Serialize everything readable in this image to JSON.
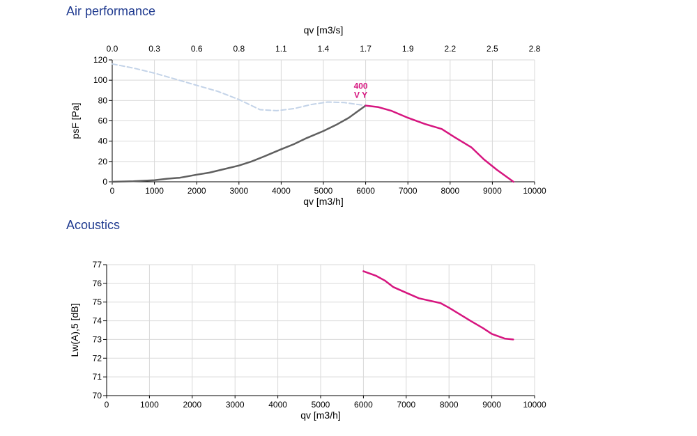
{
  "sections": {
    "air_title": "Air performance",
    "acoustics_title": "Acoustics"
  },
  "colors": {
    "operating_curve": "#d6157f",
    "reference_curve": "#5f5f5f",
    "max_curve": "#c3d3e8",
    "grid": "#d9d9d9",
    "title": "#1f3a8f"
  },
  "chart_data": [
    {
      "type": "line",
      "title": "Air performance",
      "xlabel": "qv [m3/h]",
      "x2label": "qv [m3/s]",
      "ylabel": "psF [Pa]",
      "xlim": [
        0,
        10000
      ],
      "ylim": [
        0,
        120
      ],
      "x_ticks": [
        "0",
        "1000",
        "2000",
        "3000",
        "4000",
        "5000",
        "6000",
        "7000",
        "8000",
        "9000",
        "10000"
      ],
      "x2_ticks": [
        "0.0",
        "0.3",
        "0.6",
        "0.8",
        "1.1",
        "1.4",
        "1.7",
        "1.9",
        "2.2",
        "2.5",
        "2.8"
      ],
      "y_ticks": [
        "0",
        "20",
        "40",
        "60",
        "80",
        "100",
        "120"
      ],
      "grid": true,
      "annotation": {
        "lines": [
          "400",
          "V Y"
        ],
        "x": 6000,
        "y": 75
      },
      "series": [
        {
          "style": "dashed",
          "color": "#c3d3e8",
          "points": [
            [
              0,
              116
            ],
            [
              500,
              112
            ],
            [
              1000,
              107
            ],
            [
              1500,
              101
            ],
            [
              2000,
              95
            ],
            [
              2500,
              89
            ],
            [
              3000,
              81
            ],
            [
              3500,
              71
            ],
            [
              3900,
              70
            ],
            [
              4300,
              72
            ],
            [
              4700,
              76
            ],
            [
              5100,
              78.5
            ],
            [
              5500,
              78
            ],
            [
              6000,
              75
            ]
          ]
        },
        {
          "style": "solid",
          "color": "#5f5f5f",
          "points": [
            [
              0,
              0
            ],
            [
              500,
              0.5
            ],
            [
              1000,
              1.5
            ],
            [
              1300,
              3
            ],
            [
              1600,
              4
            ],
            [
              2000,
              7
            ],
            [
              2300,
              9
            ],
            [
              2600,
              12
            ],
            [
              3000,
              16
            ],
            [
              3300,
              20
            ],
            [
              3600,
              25
            ],
            [
              4000,
              32
            ],
            [
              4300,
              37
            ],
            [
              4600,
              43
            ],
            [
              5000,
              50
            ],
            [
              5300,
              56
            ],
            [
              5600,
              63
            ],
            [
              6000,
              75
            ]
          ]
        },
        {
          "style": "solid",
          "color": "#d6157f",
          "points": [
            [
              6000,
              75
            ],
            [
              6300,
              73.5
            ],
            [
              6600,
              70
            ],
            [
              7000,
              63
            ],
            [
              7400,
              57
            ],
            [
              7800,
              52
            ],
            [
              8100,
              44
            ],
            [
              8500,
              34
            ],
            [
              8800,
              22
            ],
            [
              9100,
              12
            ],
            [
              9500,
              0
            ]
          ]
        }
      ]
    },
    {
      "type": "line",
      "title": "Acoustics",
      "xlabel": "qv [m3/h]",
      "ylabel": "Lw(A),5 [dB]",
      "xlim": [
        0,
        10000
      ],
      "ylim": [
        70,
        77
      ],
      "x_ticks": [
        "0",
        "1000",
        "2000",
        "3000",
        "4000",
        "5000",
        "6000",
        "7000",
        "8000",
        "9000",
        "10000"
      ],
      "y_ticks": [
        "70",
        "71",
        "72",
        "73",
        "74",
        "75",
        "76",
        "77"
      ],
      "grid": true,
      "series": [
        {
          "style": "solid",
          "color": "#d6157f",
          "points": [
            [
              6000,
              76.65
            ],
            [
              6300,
              76.4
            ],
            [
              6500,
              76.15
            ],
            [
              6700,
              75.8
            ],
            [
              7000,
              75.5
            ],
            [
              7300,
              75.2
            ],
            [
              7800,
              74.95
            ],
            [
              8000,
              74.7
            ],
            [
              8500,
              74.0
            ],
            [
              8800,
              73.6
            ],
            [
              9000,
              73.3
            ],
            [
              9300,
              73.05
            ],
            [
              9500,
              73.0
            ]
          ]
        }
      ]
    }
  ]
}
